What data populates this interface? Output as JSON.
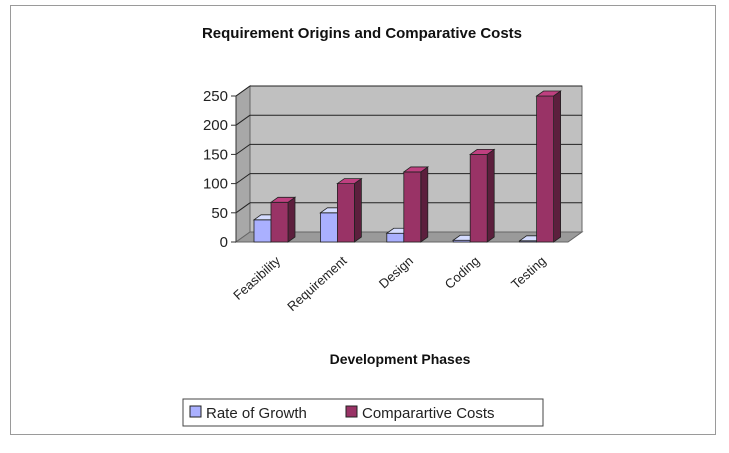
{
  "chart_data": {
    "type": "bar",
    "title": "Requirement Origins and Comparative Costs",
    "xlabel": "Development Phases",
    "ylabel": "",
    "categories": [
      "Feasibility",
      "Requirement",
      "Design",
      "Coding",
      "Testing"
    ],
    "series": [
      {
        "name": "Rate of Growth",
        "values": [
          38,
          50,
          15,
          3,
          2
        ],
        "color": "#aab0ff"
      },
      {
        "name": "Comparartive Costs",
        "values": [
          68,
          100,
          120,
          150,
          250
        ],
        "color": "#993366"
      }
    ],
    "ylim": [
      0,
      250
    ],
    "yticks": [
      0,
      50,
      100,
      150,
      200,
      250
    ],
    "grid": true,
    "legend": "bottom",
    "style": "3d-clustered-column",
    "wall_color": "#c0c0c0"
  }
}
